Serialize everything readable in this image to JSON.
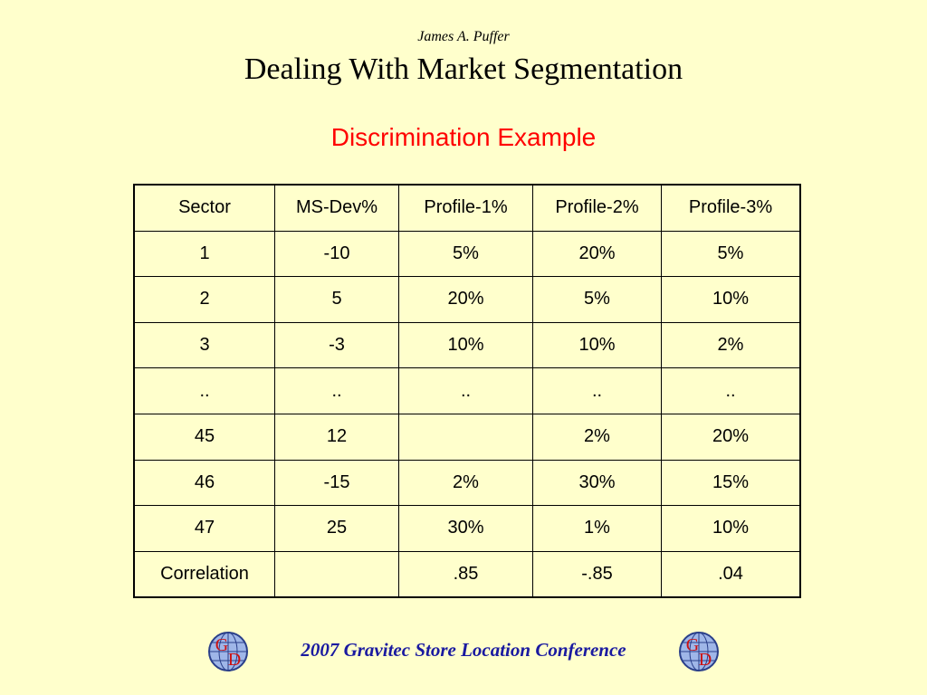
{
  "header": {
    "author": "James A. Puffer",
    "title": "Dealing With Market Segmentation",
    "subtitle": "Discrimination Example"
  },
  "table": {
    "columns": [
      "Sector",
      "MS-Dev%",
      "Profile-1%",
      "Profile-2%",
      "Profile-3%"
    ],
    "rows": [
      [
        "1",
        "-10",
        "5%",
        "20%",
        "5%"
      ],
      [
        "2",
        "5",
        "20%",
        "5%",
        "10%"
      ],
      [
        "3",
        "-3",
        "10%",
        "10%",
        "2%"
      ],
      [
        "..",
        "..",
        "..",
        "..",
        ".."
      ],
      [
        "45",
        "12",
        null,
        "2%",
        "20%"
      ],
      [
        "46",
        "-15",
        "2%",
        "30%",
        "15%"
      ],
      [
        "47",
        "25",
        "30%",
        "1%",
        "10%"
      ],
      [
        "Correlation",
        null,
        ".85",
        "-.85",
        ".04"
      ]
    ]
  },
  "footer": {
    "text": "2007 Gravitec Store Location Conference",
    "logo_letters": [
      "G",
      "D"
    ]
  }
}
